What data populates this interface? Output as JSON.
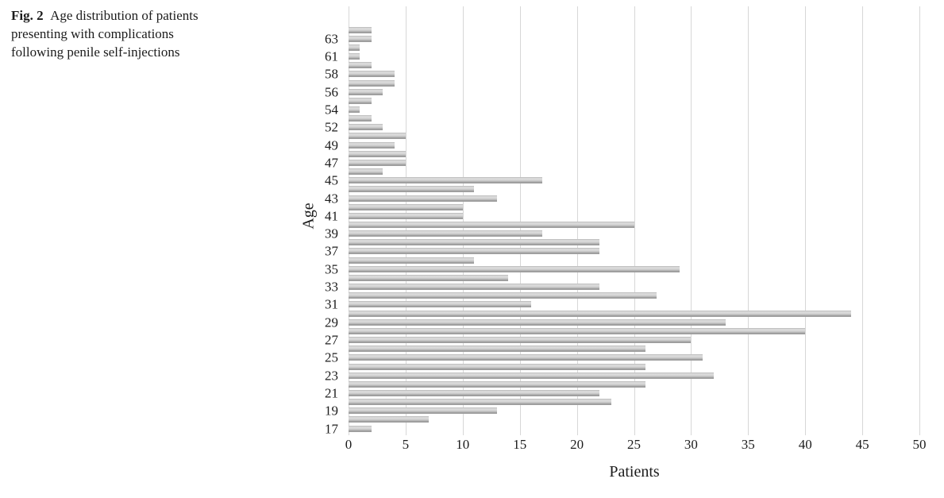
{
  "caption": {
    "label": "Fig. 2",
    "text": "Age distribution of patients presenting with complications following penile self-injections"
  },
  "chart_data": {
    "type": "bar",
    "orientation": "horizontal",
    "xlabel": "Patients",
    "ylabel": "Age",
    "xlim": [
      0,
      50
    ],
    "xticks": [
      0,
      5,
      10,
      15,
      20,
      25,
      30,
      35,
      40,
      45,
      50
    ],
    "grid": "vertical-only",
    "legend": "none",
    "bar_gradient": [
      "#dcdcdc",
      "#8f8f8f"
    ],
    "gridline_color": "#d7d7d7",
    "note": "rows listed top-to-bottom; category axis labels shown only on alternating rows",
    "rows": [
      {
        "label": "",
        "value": 2
      },
      {
        "label": "63",
        "value": 2
      },
      {
        "label": "",
        "value": 1
      },
      {
        "label": "61",
        "value": 1
      },
      {
        "label": "",
        "value": 2
      },
      {
        "label": "58",
        "value": 4
      },
      {
        "label": "",
        "value": 4
      },
      {
        "label": "56",
        "value": 3
      },
      {
        "label": "",
        "value": 2
      },
      {
        "label": "54",
        "value": 1
      },
      {
        "label": "",
        "value": 2
      },
      {
        "label": "52",
        "value": 3
      },
      {
        "label": "",
        "value": 5
      },
      {
        "label": "49",
        "value": 4
      },
      {
        "label": "",
        "value": 5
      },
      {
        "label": "47",
        "value": 5
      },
      {
        "label": "",
        "value": 3
      },
      {
        "label": "45",
        "value": 17
      },
      {
        "label": "",
        "value": 11
      },
      {
        "label": "43",
        "value": 13
      },
      {
        "label": "",
        "value": 10
      },
      {
        "label": "41",
        "value": 10
      },
      {
        "label": "",
        "value": 25
      },
      {
        "label": "39",
        "value": 17
      },
      {
        "label": "",
        "value": 22
      },
      {
        "label": "37",
        "value": 22
      },
      {
        "label": "",
        "value": 11
      },
      {
        "label": "35",
        "value": 29
      },
      {
        "label": "",
        "value": 14
      },
      {
        "label": "33",
        "value": 22
      },
      {
        "label": "",
        "value": 27
      },
      {
        "label": "31",
        "value": 16
      },
      {
        "label": "",
        "value": 44
      },
      {
        "label": "29",
        "value": 33
      },
      {
        "label": "",
        "value": 40
      },
      {
        "label": "27",
        "value": 30
      },
      {
        "label": "",
        "value": 26
      },
      {
        "label": "25",
        "value": 31
      },
      {
        "label": "",
        "value": 26
      },
      {
        "label": "23",
        "value": 32
      },
      {
        "label": "",
        "value": 26
      },
      {
        "label": "21",
        "value": 22
      },
      {
        "label": "",
        "value": 23
      },
      {
        "label": "19",
        "value": 13
      },
      {
        "label": "",
        "value": 7
      },
      {
        "label": "17",
        "value": 2
      }
    ]
  }
}
